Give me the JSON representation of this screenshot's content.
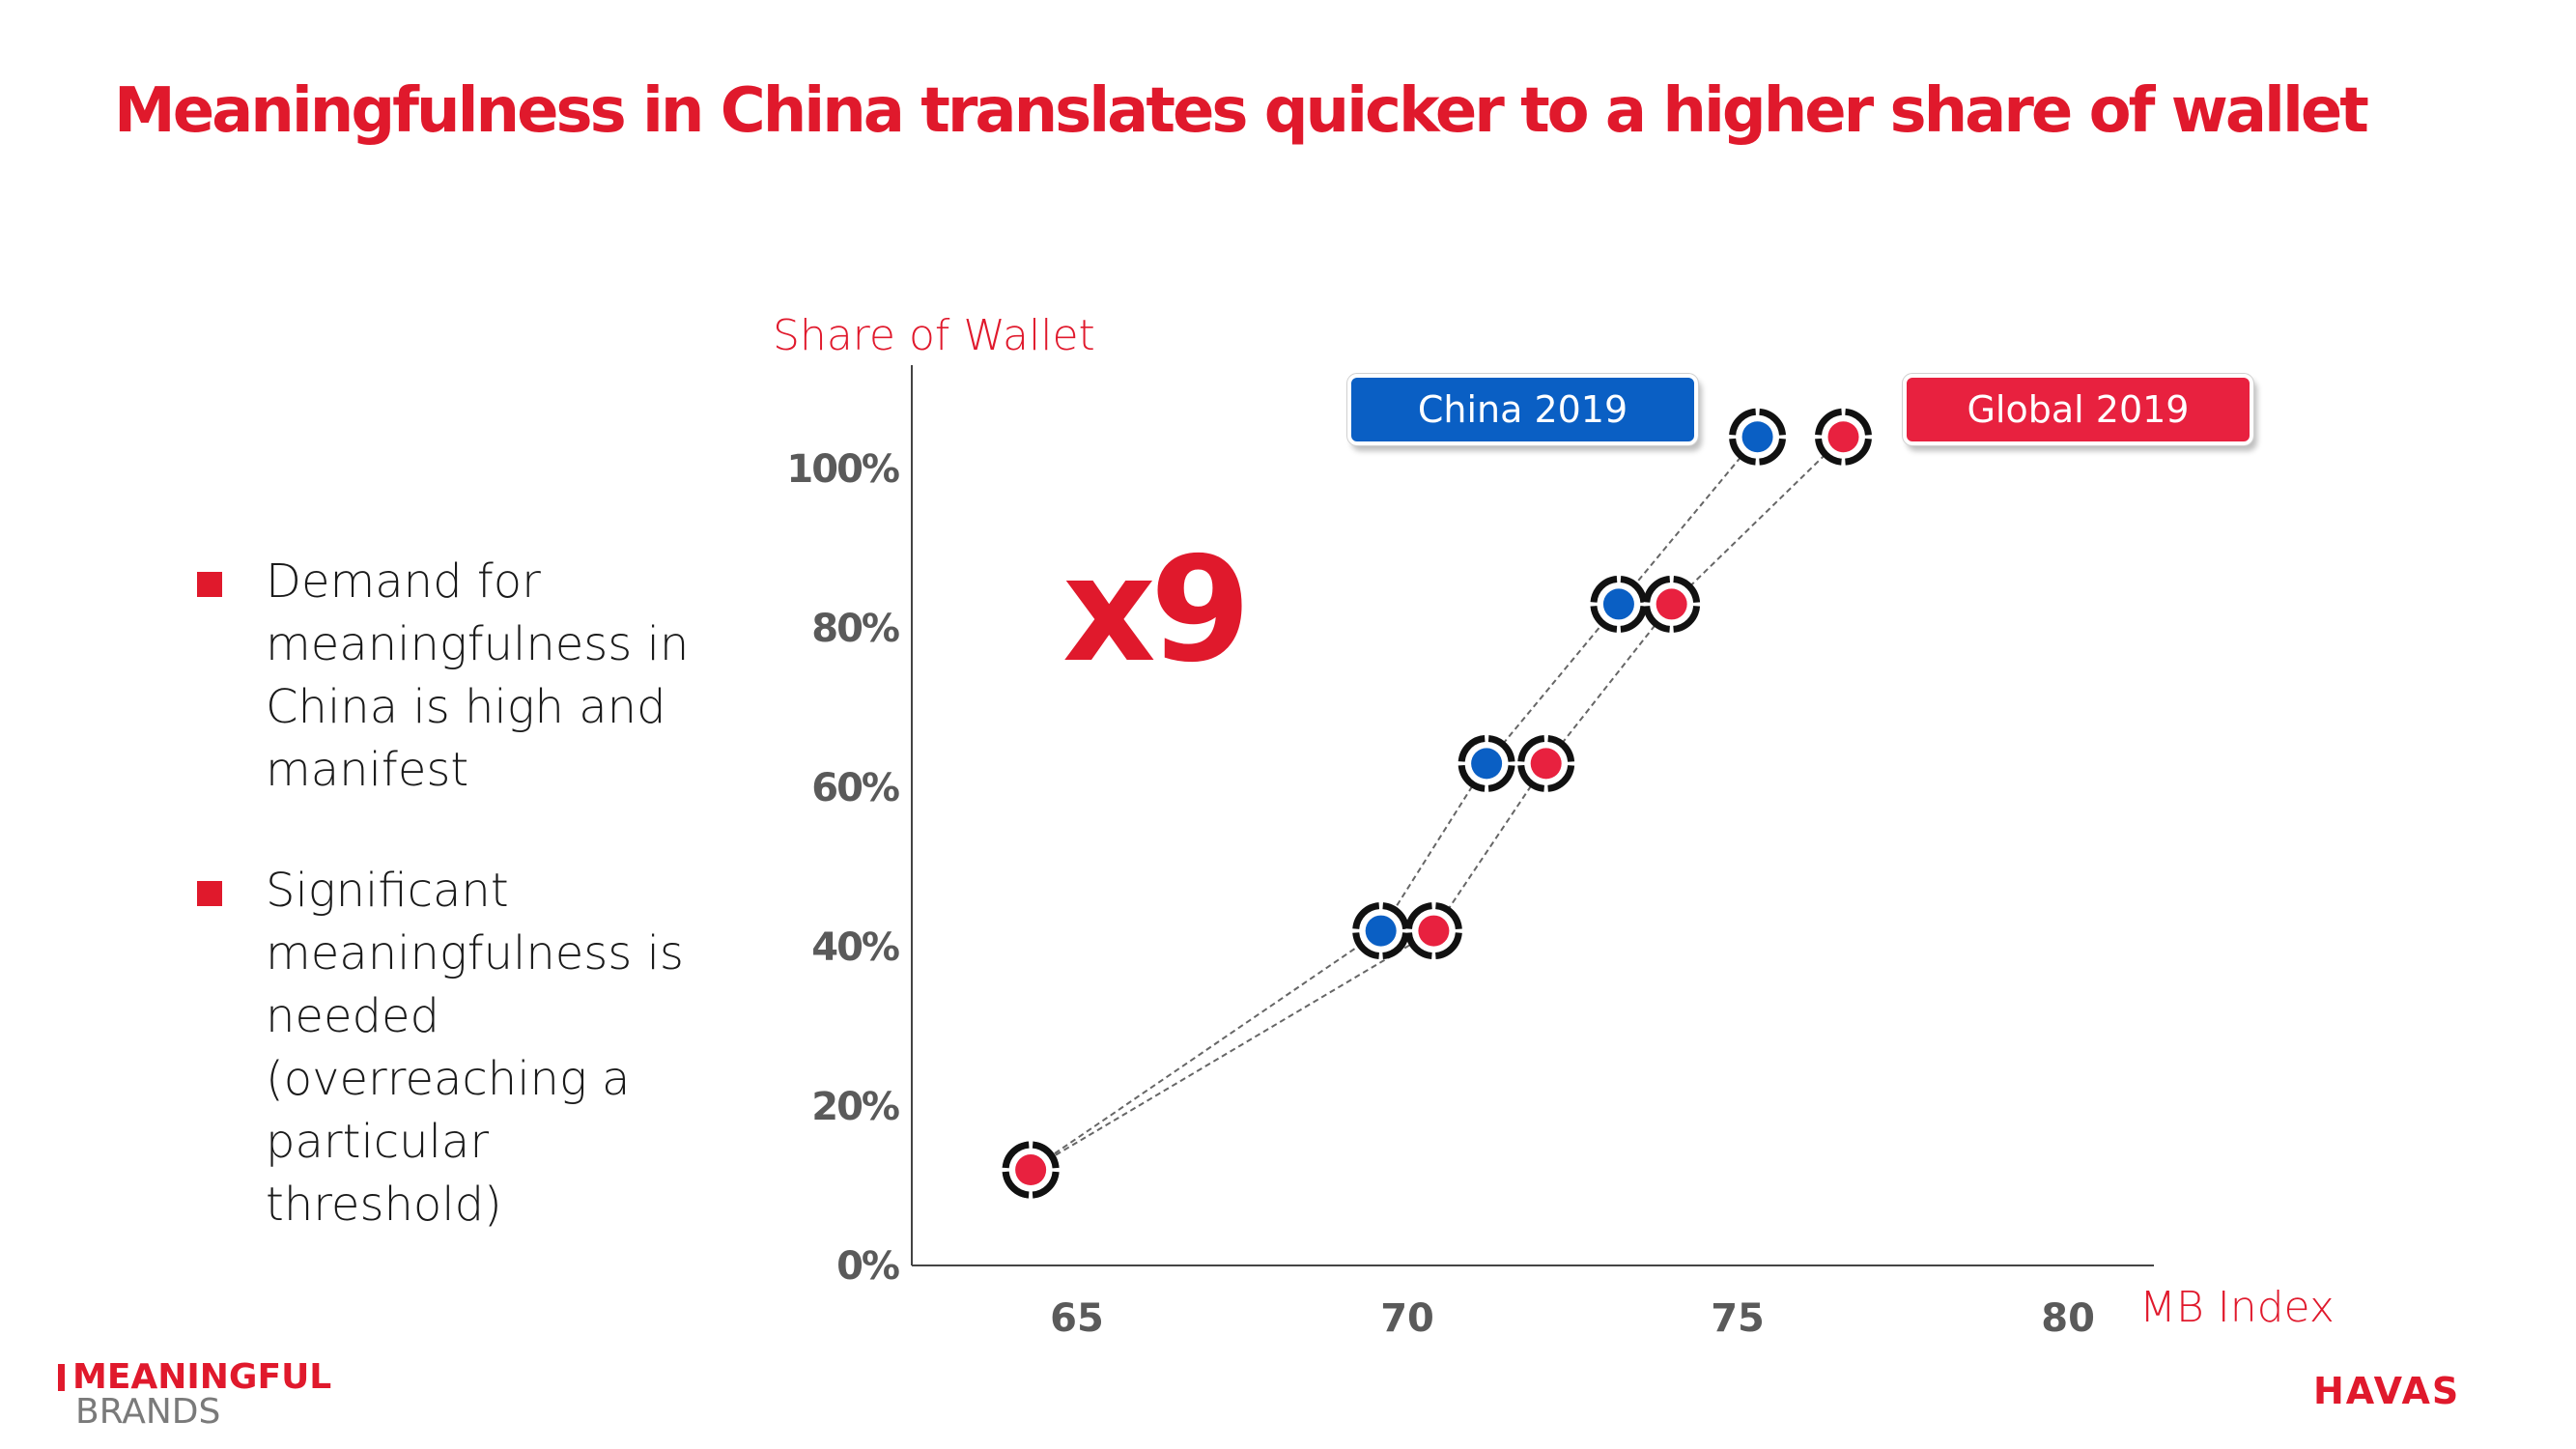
{
  "title": "Meaningfulness in China translates quicker to a higher share of wallet",
  "bullets": [
    "Demand for meaningfulness in China is high and manifest",
    "Significant meaningfulness is needed (overreaching a particular threshold)"
  ],
  "callout": "x9",
  "legend": {
    "china": "China 2019",
    "global": "Global 2019"
  },
  "logos": {
    "left_top": "MEANINGFUL",
    "left_bottom": "BRANDS",
    "right": "HAVAS"
  },
  "colors": {
    "accent_red": "#e0192c",
    "china_blue": "#0a5fc4",
    "global_red": "#e8213f"
  },
  "chart_data": {
    "type": "scatter",
    "ylabel": "Share of Wallet",
    "xlabel": "MB Index",
    "x_ticks": [
      "65",
      "70",
      "75",
      "80"
    ],
    "y_ticks": [
      "0%",
      "20%",
      "40%",
      "60%",
      "80%",
      "100%"
    ],
    "xlim": [
      62.5,
      81.3
    ],
    "ylim": [
      0,
      113
    ],
    "grid": false,
    "series": [
      {
        "name": "China 2019",
        "color": "#0a5fc4",
        "points": [
          [
            64.3,
            12
          ],
          [
            69.6,
            42
          ],
          [
            71.2,
            63
          ],
          [
            73.2,
            83
          ],
          [
            75.3,
            104
          ]
        ]
      },
      {
        "name": "Global 2019",
        "color": "#e8213f",
        "points": [
          [
            64.3,
            12
          ],
          [
            70.4,
            42
          ],
          [
            72.1,
            63
          ],
          [
            74.0,
            83
          ],
          [
            76.6,
            104
          ]
        ]
      }
    ]
  }
}
